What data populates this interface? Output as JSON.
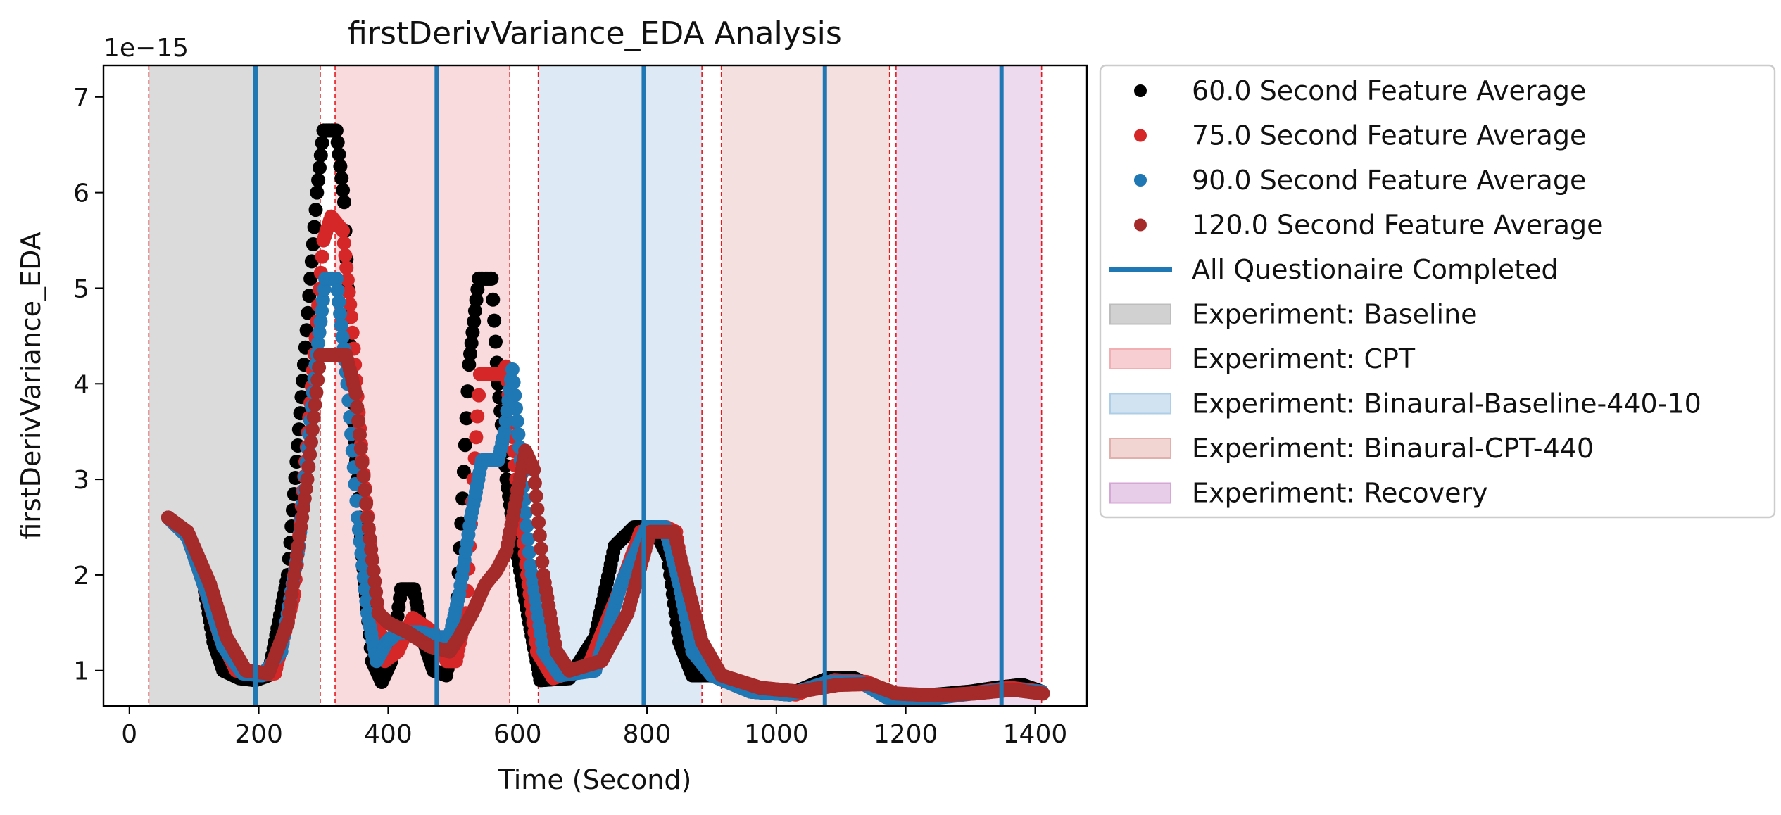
{
  "chart_data": {
    "type": "scatter",
    "title": "firstDerivVariance_EDA Analysis",
    "xlabel": "Time (Second)",
    "ylabel": "firstDerivVariance_EDA",
    "y_scale_label": "1e−15",
    "xlim": [
      -40,
      1480
    ],
    "ylim": [
      0.63,
      7.33
    ],
    "xticks": [
      0,
      200,
      400,
      600,
      800,
      1000,
      1200,
      1400
    ],
    "yticks": [
      1,
      2,
      3,
      4,
      5,
      6,
      7
    ],
    "legend_position": "outside right",
    "experiments": [
      {
        "label": "Experiment: Baseline",
        "start": 30,
        "end": 295,
        "color": "#bdbdbd",
        "opacity": 0.55
      },
      {
        "label": "Experiment: CPT",
        "start": 318,
        "end": 588,
        "color": "#f1aeb3",
        "opacity": 0.45
      },
      {
        "label": "Experiment: Binaural-Baseline-440-10",
        "start": 632,
        "end": 885,
        "color": "#aecde6",
        "opacity": 0.42
      },
      {
        "label": "Experiment: Binaural-CPT-440",
        "start": 915,
        "end": 1175,
        "color": "#e2b0ac",
        "opacity": 0.38
      },
      {
        "label": "Experiment: Recovery",
        "start": 1185,
        "end": 1410,
        "color": "#d4a7d6",
        "opacity": 0.42
      }
    ],
    "boundaries": [
      30,
      295,
      318,
      588,
      632,
      885,
      915,
      1175,
      1185,
      1410
    ],
    "questionnaire": {
      "label": "All Questionaire Completed",
      "color": "#1f77b4",
      "x": [
        195,
        475,
        795,
        1075,
        1348
      ]
    },
    "series": [
      {
        "name": "60.0 Second Feature Average",
        "color": "#000000",
        "points": [
          [
            60,
            2.6
          ],
          [
            90,
            2.4
          ],
          [
            115,
            1.9
          ],
          [
            130,
            1.3
          ],
          [
            145,
            1.0
          ],
          [
            170,
            0.92
          ],
          [
            195,
            0.9
          ],
          [
            215,
            0.95
          ],
          [
            245,
            2.0
          ],
          [
            270,
            4.2
          ],
          [
            290,
            6.0
          ],
          [
            300,
            6.65
          ],
          [
            320,
            6.65
          ],
          [
            332,
            5.9
          ],
          [
            345,
            3.8
          ],
          [
            360,
            2.2
          ],
          [
            375,
            1.1
          ],
          [
            390,
            0.88
          ],
          [
            405,
            1.1
          ],
          [
            420,
            1.85
          ],
          [
            440,
            1.85
          ],
          [
            455,
            1.3
          ],
          [
            470,
            1.0
          ],
          [
            490,
            0.95
          ],
          [
            505,
            1.5
          ],
          [
            515,
            2.8
          ],
          [
            525,
            4.2
          ],
          [
            540,
            5.1
          ],
          [
            560,
            5.1
          ],
          [
            570,
            4.0
          ],
          [
            583,
            3.0
          ],
          [
            600,
            2.2
          ],
          [
            618,
            1.5
          ],
          [
            635,
            0.9
          ],
          [
            680,
            0.92
          ],
          [
            720,
            1.35
          ],
          [
            750,
            2.3
          ],
          [
            780,
            2.5
          ],
          [
            810,
            2.5
          ],
          [
            832,
            2.2
          ],
          [
            850,
            1.3
          ],
          [
            870,
            0.95
          ],
          [
            900,
            0.95
          ],
          [
            960,
            0.78
          ],
          [
            1020,
            0.75
          ],
          [
            1080,
            0.92
          ],
          [
            1120,
            0.92
          ],
          [
            1160,
            0.8
          ],
          [
            1200,
            0.73
          ],
          [
            1250,
            0.75
          ],
          [
            1300,
            0.78
          ],
          [
            1340,
            0.82
          ],
          [
            1380,
            0.85
          ],
          [
            1410,
            0.78
          ]
        ]
      },
      {
        "name": "75.0 Second Feature Average",
        "color": "#d62728",
        "points": [
          [
            60,
            2.6
          ],
          [
            90,
            2.4
          ],
          [
            115,
            1.9
          ],
          [
            140,
            1.35
          ],
          [
            165,
            1.0
          ],
          [
            200,
            0.95
          ],
          [
            225,
            0.97
          ],
          [
            255,
            1.8
          ],
          [
            280,
            3.8
          ],
          [
            300,
            5.5
          ],
          [
            312,
            5.75
          ],
          [
            330,
            5.6
          ],
          [
            343,
            4.7
          ],
          [
            360,
            3.2
          ],
          [
            378,
            1.9
          ],
          [
            395,
            1.1
          ],
          [
            415,
            1.2
          ],
          [
            438,
            1.55
          ],
          [
            470,
            1.4
          ],
          [
            490,
            1.1
          ],
          [
            505,
            1.1
          ],
          [
            520,
            1.6
          ],
          [
            532,
            3.0
          ],
          [
            542,
            4.1
          ],
          [
            575,
            4.1
          ],
          [
            582,
            4.18
          ],
          [
            598,
            3.0
          ],
          [
            615,
            2.0
          ],
          [
            630,
            1.2
          ],
          [
            655,
            0.92
          ],
          [
            710,
            1.05
          ],
          [
            755,
            1.8
          ],
          [
            790,
            2.45
          ],
          [
            830,
            2.5
          ],
          [
            845,
            2.45
          ],
          [
            860,
            1.8
          ],
          [
            880,
            1.2
          ],
          [
            910,
            0.95
          ],
          [
            970,
            0.8
          ],
          [
            1030,
            0.75
          ],
          [
            1090,
            0.9
          ],
          [
            1140,
            0.88
          ],
          [
            1180,
            0.76
          ],
          [
            1240,
            0.73
          ],
          [
            1300,
            0.76
          ],
          [
            1360,
            0.82
          ],
          [
            1410,
            0.78
          ]
        ]
      },
      {
        "name": "90.0 Second Feature Average",
        "color": "#1f77b4",
        "points": [
          [
            60,
            2.6
          ],
          [
            90,
            2.4
          ],
          [
            120,
            1.8
          ],
          [
            145,
            1.25
          ],
          [
            175,
            0.97
          ],
          [
            205,
            0.95
          ],
          [
            235,
            1.2
          ],
          [
            262,
            2.3
          ],
          [
            288,
            4.2
          ],
          [
            303,
            5.1
          ],
          [
            320,
            5.1
          ],
          [
            337,
            4.0
          ],
          [
            353,
            2.6
          ],
          [
            368,
            1.6
          ],
          [
            382,
            1.1
          ],
          [
            398,
            1.3
          ],
          [
            415,
            1.4
          ],
          [
            450,
            1.4
          ],
          [
            476,
            1.35
          ],
          [
            495,
            1.35
          ],
          [
            510,
            1.8
          ],
          [
            528,
            2.6
          ],
          [
            545,
            3.2
          ],
          [
            570,
            3.2
          ],
          [
            580,
            3.5
          ],
          [
            592,
            4.15
          ],
          [
            605,
            3.2
          ],
          [
            620,
            2.1
          ],
          [
            640,
            1.2
          ],
          [
            665,
            0.95
          ],
          [
            720,
            1.0
          ],
          [
            760,
            1.9
          ],
          [
            800,
            2.5
          ],
          [
            828,
            2.5
          ],
          [
            850,
            1.9
          ],
          [
            870,
            1.2
          ],
          [
            900,
            0.95
          ],
          [
            960,
            0.78
          ],
          [
            1020,
            0.75
          ],
          [
            1080,
            0.88
          ],
          [
            1130,
            0.88
          ],
          [
            1170,
            0.72
          ],
          [
            1230,
            0.7
          ],
          [
            1290,
            0.75
          ],
          [
            1350,
            0.8
          ],
          [
            1410,
            0.78
          ]
        ]
      },
      {
        "name": "120.0 Second Feature Average",
        "color": "#a52a2a",
        "points": [
          [
            60,
            2.6
          ],
          [
            90,
            2.45
          ],
          [
            125,
            1.9
          ],
          [
            150,
            1.35
          ],
          [
            180,
            1.0
          ],
          [
            215,
            0.97
          ],
          [
            245,
            1.5
          ],
          [
            275,
            3.0
          ],
          [
            295,
            4.3
          ],
          [
            335,
            4.3
          ],
          [
            350,
            3.9
          ],
          [
            368,
            2.6
          ],
          [
            385,
            1.6
          ],
          [
            400,
            1.5
          ],
          [
            430,
            1.4
          ],
          [
            465,
            1.25
          ],
          [
            495,
            1.2
          ],
          [
            510,
            1.35
          ],
          [
            530,
            1.6
          ],
          [
            550,
            1.9
          ],
          [
            568,
            2.05
          ],
          [
            583,
            2.25
          ],
          [
            598,
            2.8
          ],
          [
            612,
            3.3
          ],
          [
            625,
            3.1
          ],
          [
            640,
            2.0
          ],
          [
            660,
            1.2
          ],
          [
            680,
            1.0
          ],
          [
            730,
            1.1
          ],
          [
            770,
            1.6
          ],
          [
            805,
            2.45
          ],
          [
            842,
            2.45
          ],
          [
            862,
            1.9
          ],
          [
            885,
            1.3
          ],
          [
            915,
            0.95
          ],
          [
            975,
            0.82
          ],
          [
            1035,
            0.78
          ],
          [
            1095,
            0.85
          ],
          [
            1145,
            0.86
          ],
          [
            1185,
            0.76
          ],
          [
            1245,
            0.74
          ],
          [
            1305,
            0.76
          ],
          [
            1365,
            0.8
          ],
          [
            1412,
            0.76
          ]
        ]
      }
    ]
  }
}
